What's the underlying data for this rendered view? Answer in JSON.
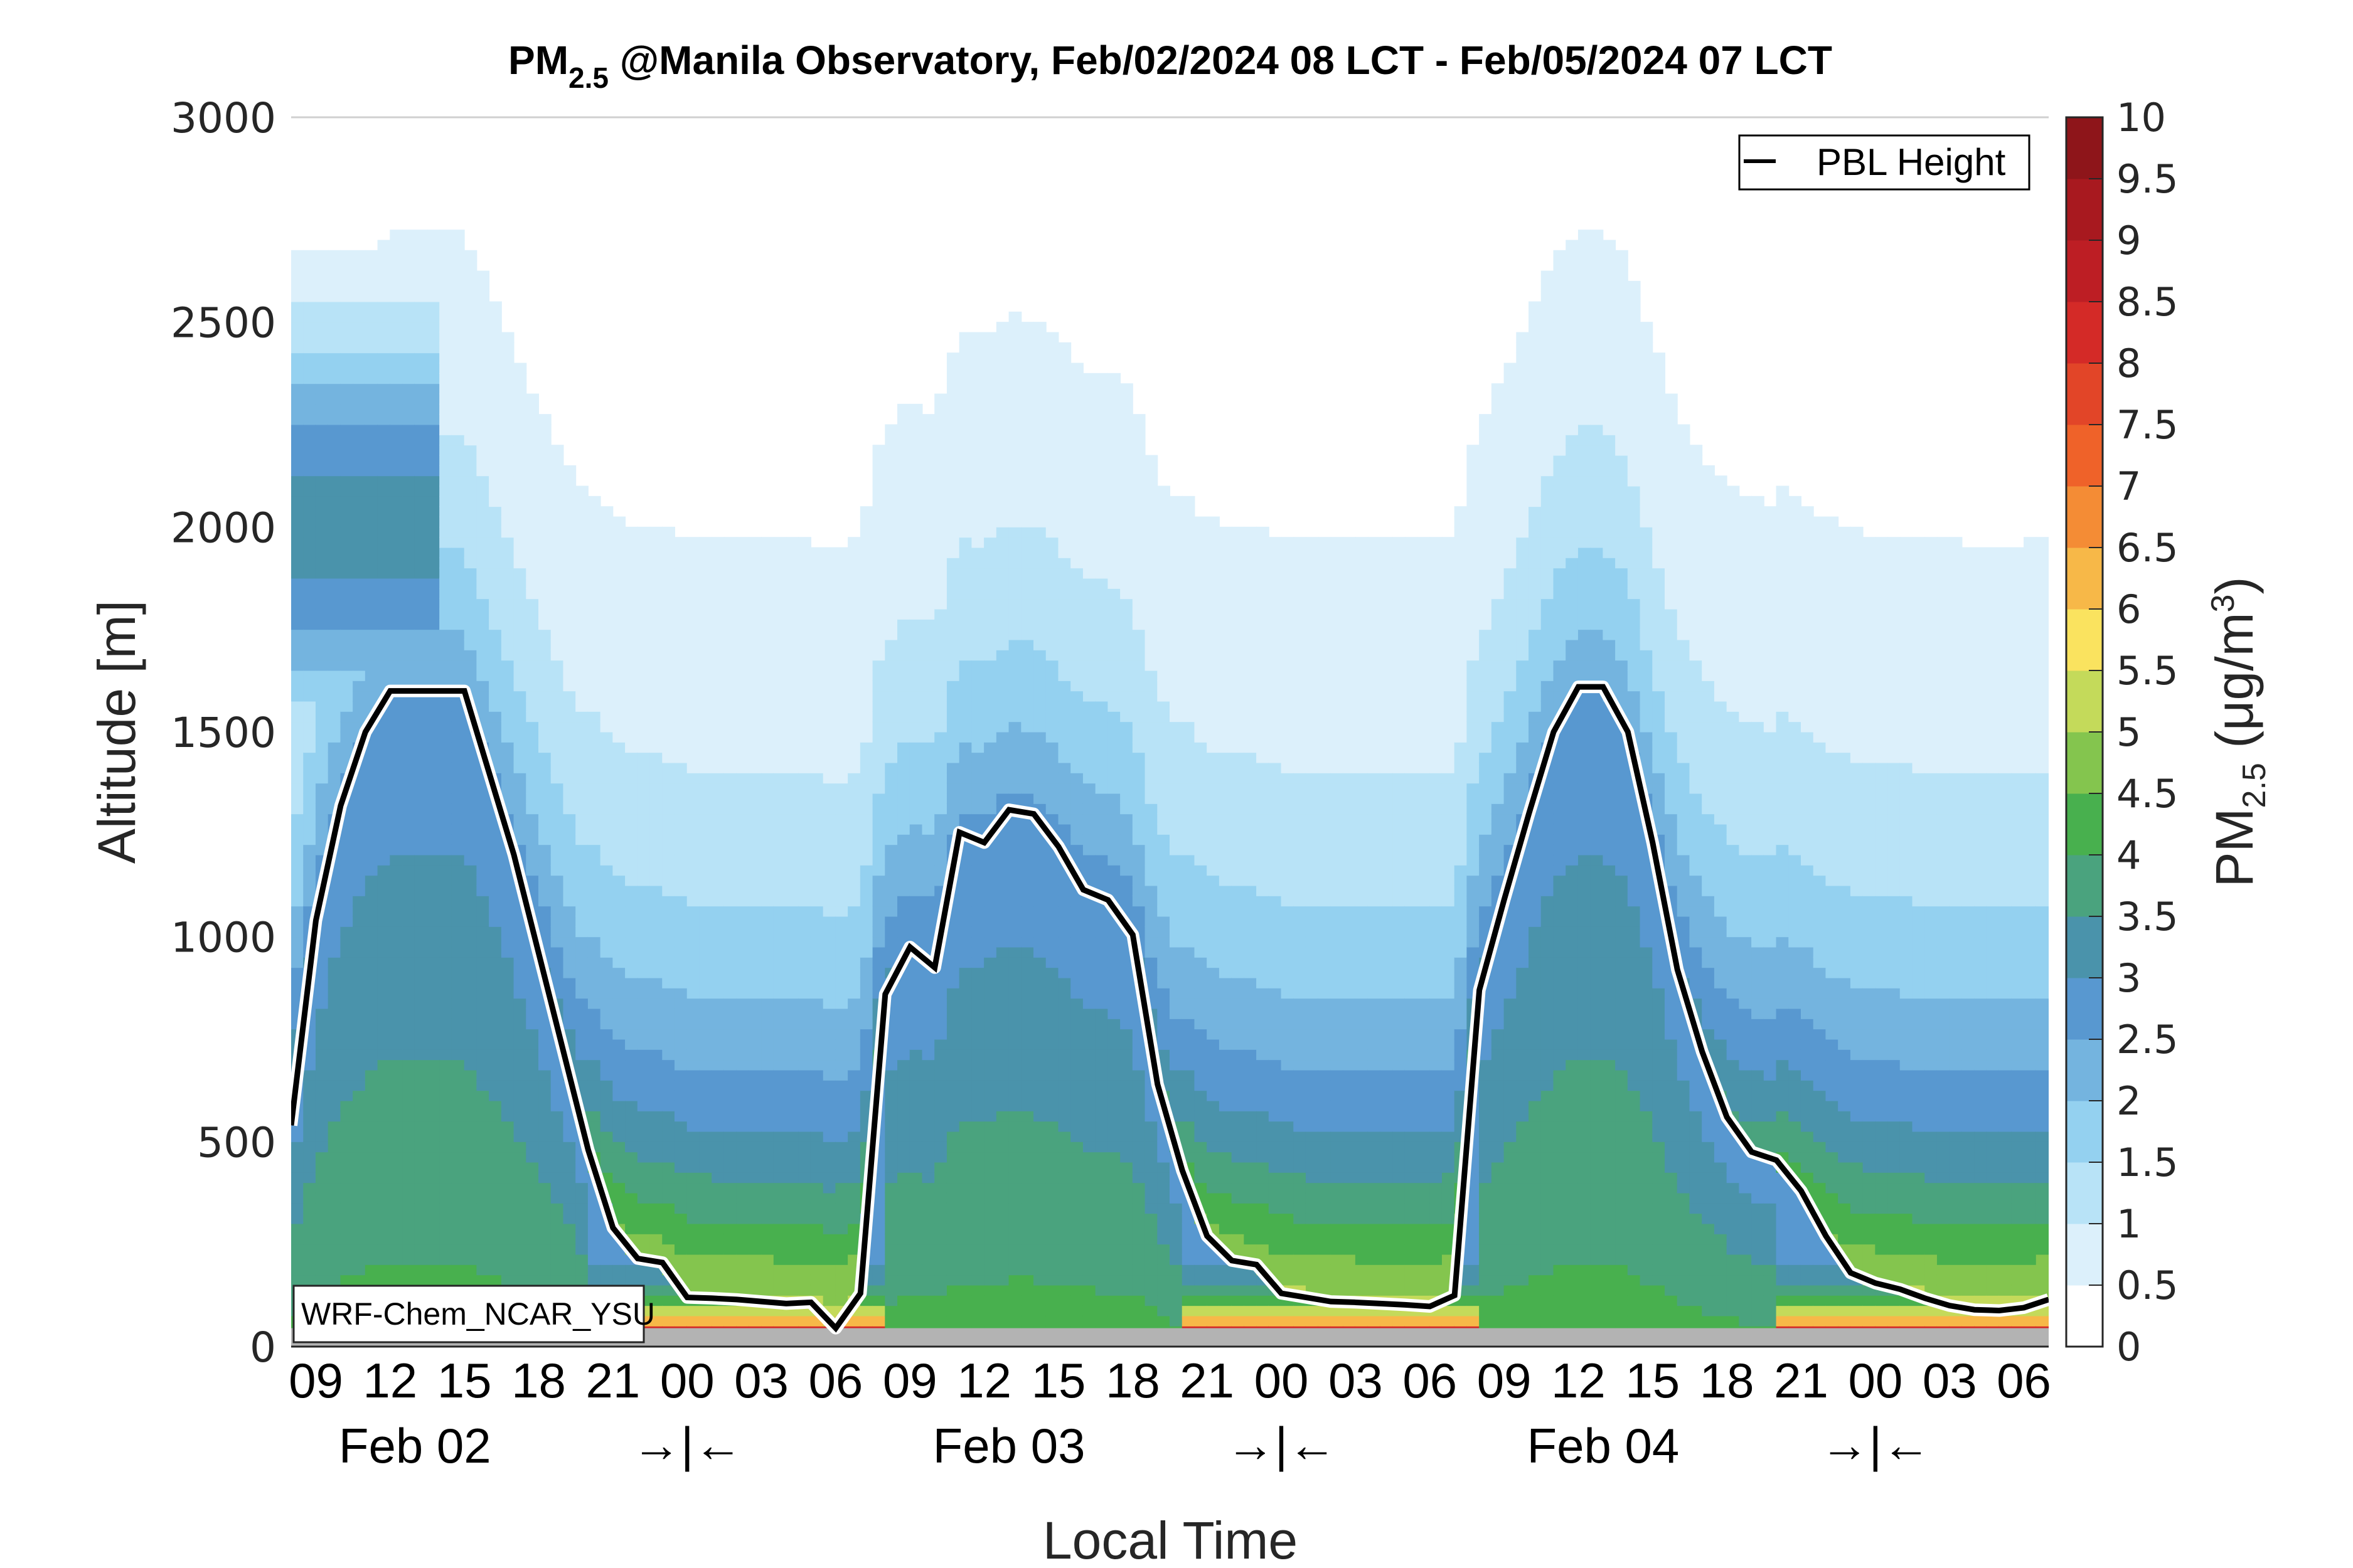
{
  "chart_data": {
    "type": "heatmap",
    "title": {
      "main": "PM",
      "subscript": "2.5",
      "rest": " @Manila Observatory, Feb/02/2024 08 LCT - Feb/05/2024 07 LCT"
    },
    "xlabel": "Local Time",
    "ylabel": "Altitude [m]",
    "ylim": [
      0,
      3000
    ],
    "yticks": [
      "0",
      "500",
      "1000",
      "1500",
      "2000",
      "2500",
      "3000"
    ],
    "ytick_values": [
      0,
      500,
      1000,
      1500,
      2000,
      2500,
      3000
    ],
    "x_start_hour_lct": 8,
    "x_hours": 72,
    "xtick_labels": [
      "09",
      "12",
      "15",
      "18",
      "21",
      "00",
      "03",
      "06",
      "09",
      "12",
      "15",
      "18",
      "21",
      "00",
      "03",
      "06",
      "09",
      "12",
      "15",
      "18",
      "21",
      "00",
      "03",
      "06"
    ],
    "xtick_hours": [
      1,
      4,
      7,
      10,
      13,
      16,
      19,
      22,
      25,
      28,
      31,
      34,
      37,
      40,
      43,
      46,
      49,
      52,
      55,
      58,
      61,
      64,
      67,
      70
    ],
    "date_labels": [
      {
        "label": "Feb 02",
        "hour": 5
      },
      {
        "label": "Feb 03",
        "hour": 29
      },
      {
        "label": "Feb 04",
        "hour": 53
      }
    ],
    "day_boundaries": [
      {
        "label": "→|←",
        "hour": 16
      },
      {
        "label": "→|←",
        "hour": 40
      },
      {
        "label": "→|←",
        "hour": 64
      }
    ],
    "colorbar": {
      "label_main": "PM",
      "label_sub": "2.5",
      "label_unit": " (μg/m",
      "label_sup": "3",
      "label_end": ")",
      "levels": [
        0,
        0.5,
        1,
        1.5,
        2,
        2.5,
        3,
        3.5,
        4,
        4.5,
        5,
        5.5,
        6,
        6.5,
        7,
        7.5,
        8,
        8.5,
        9,
        9.5,
        10
      ],
      "tick_labels": [
        "0",
        "0.5",
        "1",
        "1.5",
        "2",
        "2.5",
        "3",
        "3.5",
        "4",
        "4.5",
        "5",
        "5.5",
        "6",
        "6.5",
        "7",
        "7.5",
        "8",
        "8.5",
        "9",
        "9.5",
        "10"
      ],
      "colors": [
        "#ffffff",
        "#dcf0fb",
        "#b8e3f7",
        "#94d1f0",
        "#74b4df",
        "#5898d0",
        "#4a93ab",
        "#4aa37e",
        "#48b04e",
        "#84c54e",
        "#c4da5a",
        "#fae35f",
        "#f7b848",
        "#f48c35",
        "#ef6229",
        "#e24528",
        "#d42a27",
        "#bd1e24",
        "#a8191f",
        "#8e151a"
      ]
    },
    "legend": {
      "entries": [
        "PBL Height"
      ],
      "placement": "top-right"
    },
    "annotation": "WRF-Chem_NCAR_YSU",
    "ground_band_top_m": 45,
    "series": [
      {
        "name": "PBL Height",
        "unit": "m",
        "hours": [
          0,
          1,
          2,
          3,
          4,
          5,
          6,
          7,
          8,
          9,
          10,
          11,
          12,
          13,
          14,
          15,
          16,
          17,
          18,
          19,
          20,
          21,
          22,
          23,
          24,
          25,
          26,
          27,
          28,
          29,
          30,
          31,
          32,
          33,
          34,
          35,
          36,
          37,
          38,
          39,
          40,
          41,
          42,
          43,
          44,
          45,
          46,
          47,
          48,
          49,
          50,
          51,
          52,
          53,
          54,
          55,
          56,
          57,
          58,
          59,
          60,
          61,
          62,
          63,
          64,
          65,
          66,
          67,
          68,
          69,
          70,
          71
        ],
        "values": [
          540,
          1040,
          1320,
          1500,
          1600,
          1600,
          1600,
          1600,
          1400,
          1200,
          960,
          720,
          480,
          290,
          215,
          205,
          120,
          118,
          115,
          110,
          105,
          108,
          45,
          130,
          860,
          975,
          925,
          1255,
          1230,
          1310,
          1300,
          1220,
          1115,
          1090,
          1005,
          640,
          430,
          270,
          210,
          200,
          130,
          120,
          110,
          108,
          105,
          102,
          98,
          125,
          870,
          1090,
          1300,
          1500,
          1610,
          1610,
          1500,
          1230,
          920,
          720,
          560,
          475,
          455,
          380,
          270,
          180,
          155,
          140,
          118,
          100,
          90,
          88,
          95,
          115
        ]
      }
    ],
    "field_model": {
      "description": "approximate PM2.5 concentration field (μg/m3) by hour and altitude",
      "altitudes_m": [
        50,
        100,
        150,
        200,
        300,
        400,
        500,
        700,
        900,
        1100,
        1300,
        1500,
        1800,
        2100,
        2400,
        2700,
        3000
      ]
    }
  }
}
